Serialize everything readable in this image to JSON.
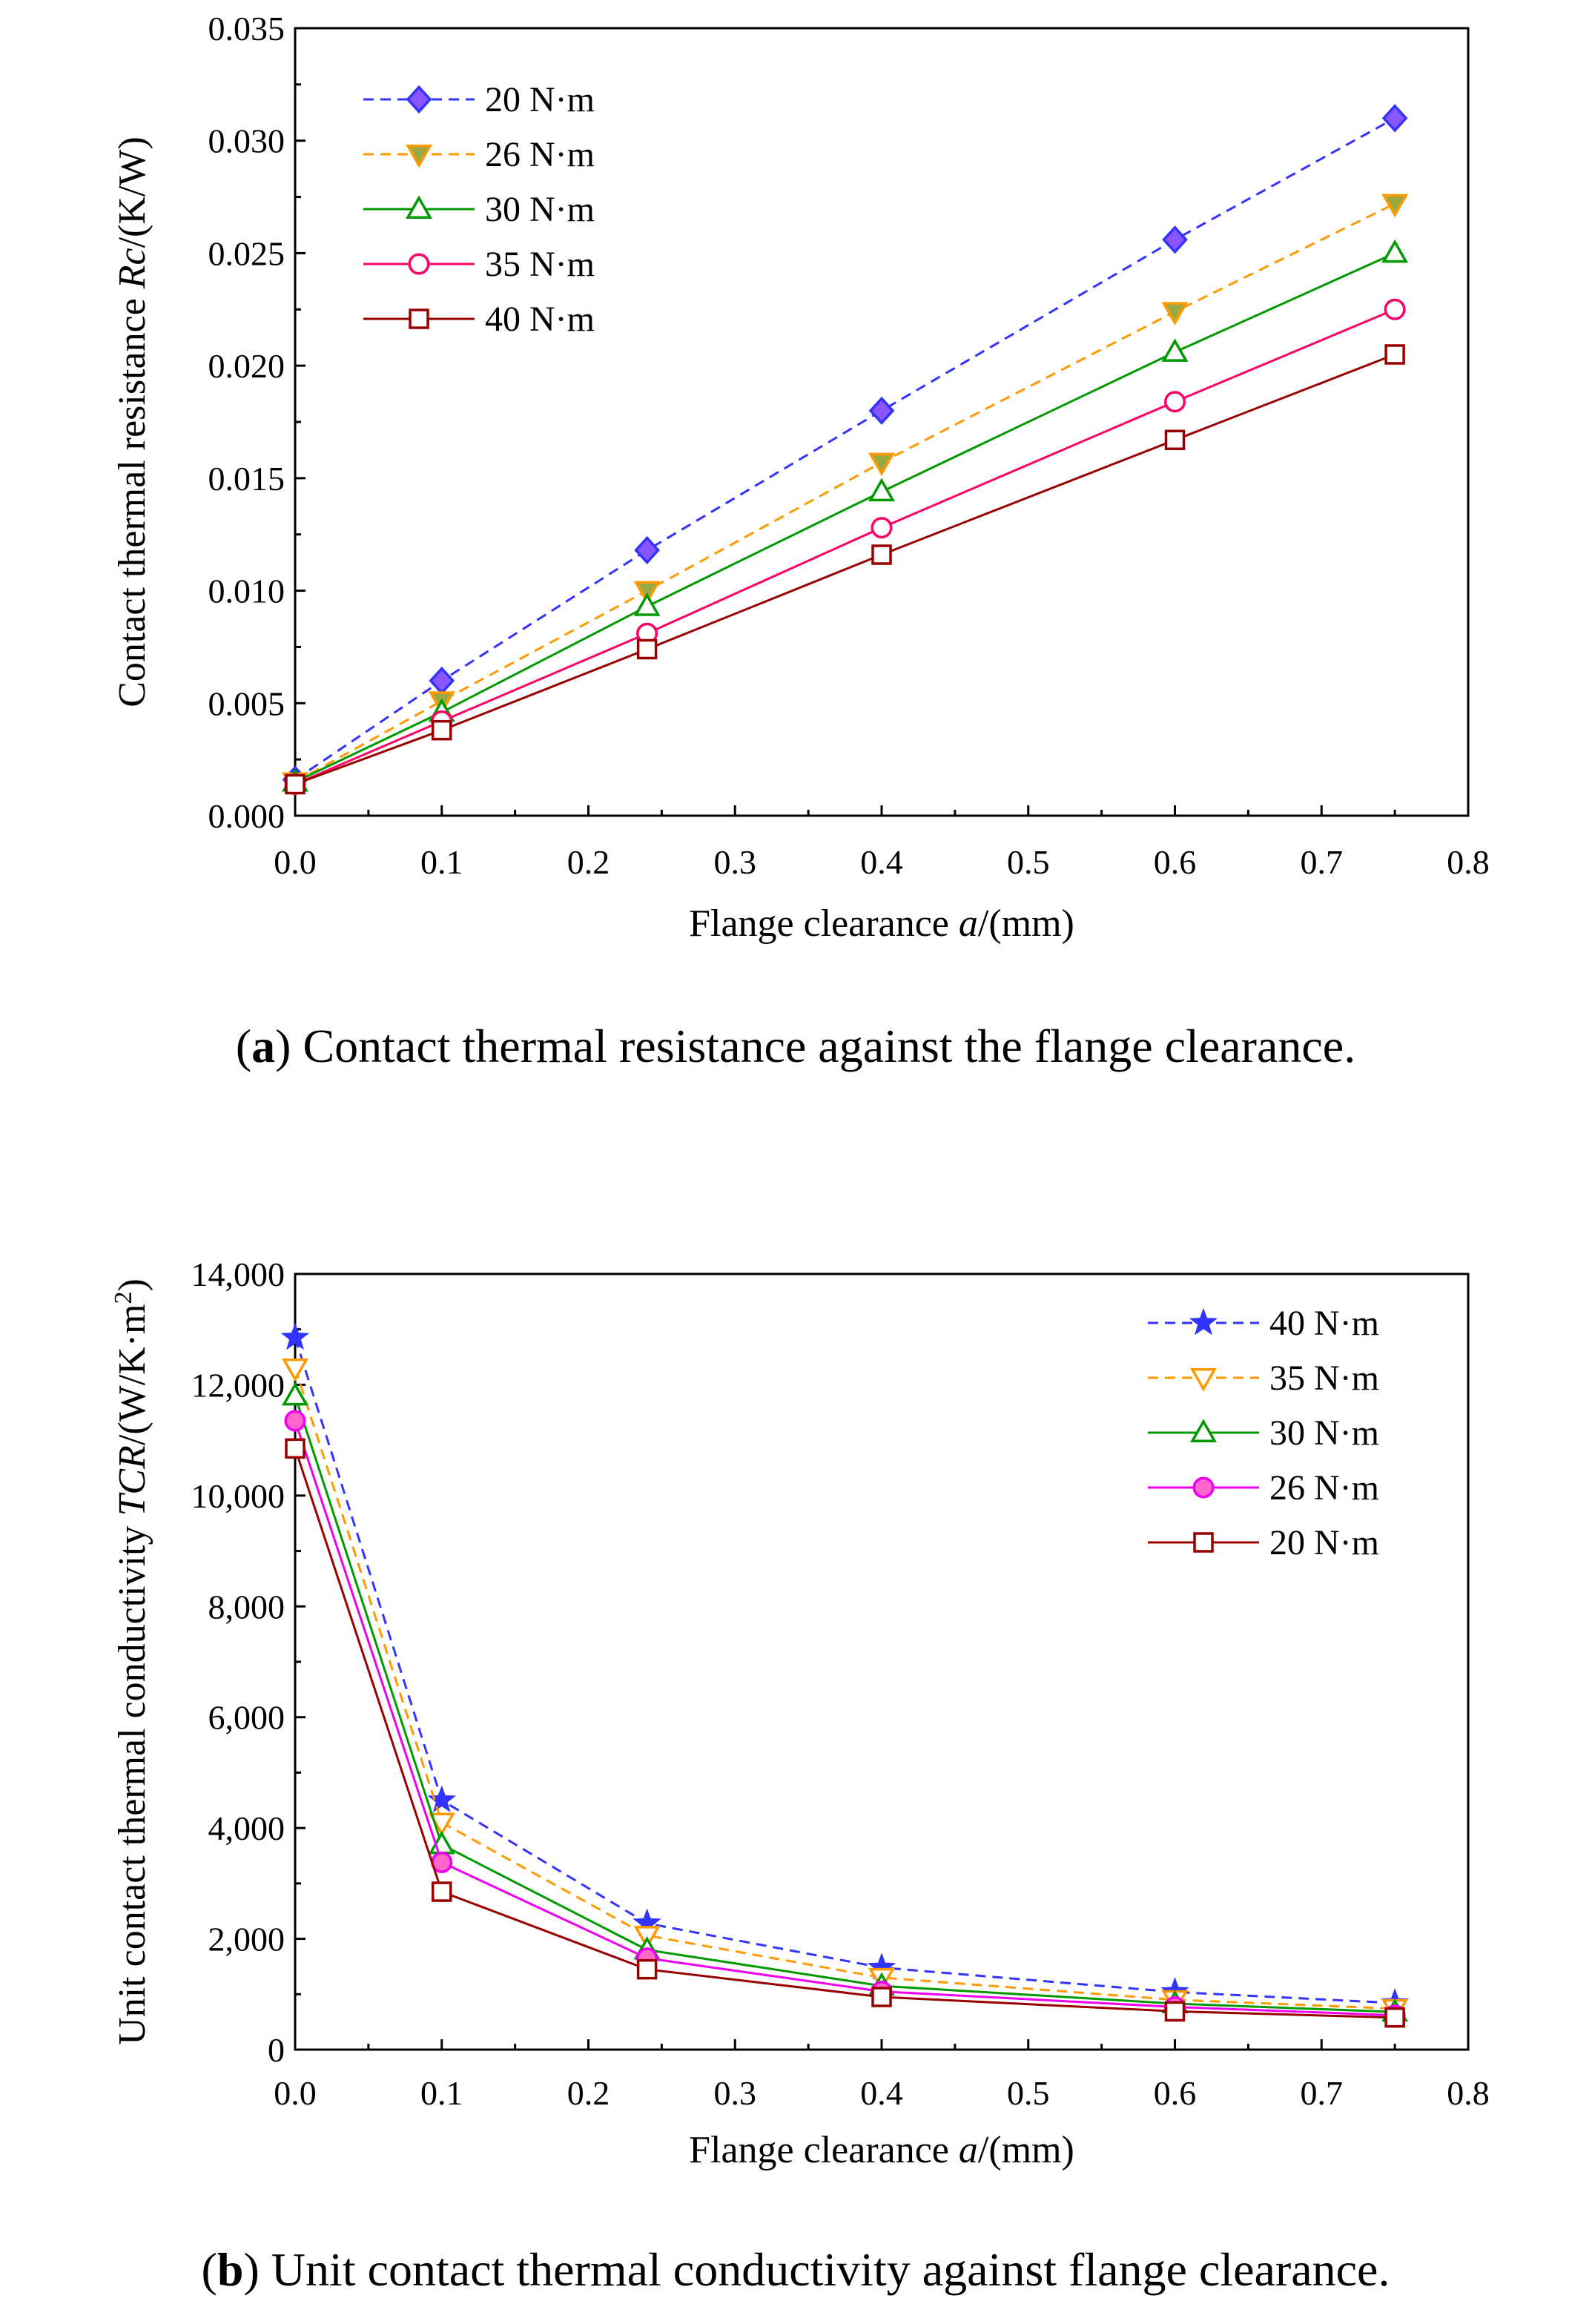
{
  "chart_data": [
    {
      "type": "line",
      "panel": "a",
      "caption_label": "a",
      "caption_text": "Contact thermal resistance against the flange clearance.",
      "xlabel": {
        "pre": "Flange clearance ",
        "var": "a",
        "post": "/(mm)"
      },
      "ylabel": {
        "pre": "Contact thermal resistance ",
        "var": "Rc",
        "post": "/(K/W)"
      },
      "xlim": [
        0,
        0.8
      ],
      "ylim": [
        0,
        0.035
      ],
      "x_ticks": [
        "0.0",
        "0.1",
        "0.2",
        "0.3",
        "0.4",
        "0.5",
        "0.6",
        "0.7",
        "0.8"
      ],
      "y_ticks": [
        "0.000",
        "0.005",
        "0.010",
        "0.015",
        "0.020",
        "0.025",
        "0.030",
        "0.035"
      ],
      "legend_position": "top-left",
      "x": [
        0,
        0.1,
        0.24,
        0.4,
        0.6,
        0.75
      ],
      "series": [
        {
          "name": "20 N·m",
          "color": "#3333ff",
          "marker_fill": "#8855ff",
          "dashed": true,
          "marker": "diamond",
          "filled": true,
          "values": [
            0.0016,
            0.006,
            0.0118,
            0.018,
            0.0256,
            0.031
          ]
        },
        {
          "name": "26 N·m",
          "color": "#ff9900",
          "marker_fill": "#99aa44",
          "dashed": true,
          "marker": "triangle-down",
          "filled": true,
          "values": [
            0.0015,
            0.0051,
            0.01,
            0.0157,
            0.0224,
            0.0272
          ]
        },
        {
          "name": "30 N·m",
          "color": "#009900",
          "dashed": false,
          "marker": "triangle-up",
          "filled": false,
          "values": [
            0.0015,
            0.0046,
            0.0093,
            0.0144,
            0.0206,
            0.025
          ]
        },
        {
          "name": "35 N·m",
          "color": "#ff0066",
          "dashed": false,
          "marker": "circle",
          "filled": false,
          "values": [
            0.0014,
            0.0042,
            0.0081,
            0.0128,
            0.0184,
            0.0225
          ]
        },
        {
          "name": "40 N·m",
          "color": "#990000",
          "dashed": false,
          "marker": "square",
          "filled": false,
          "values": [
            0.0014,
            0.0038,
            0.0074,
            0.0116,
            0.0167,
            0.0205
          ]
        }
      ]
    },
    {
      "type": "line",
      "panel": "b",
      "caption_label": "b",
      "caption_text": "Unit contact thermal conductivity against flange clearance.",
      "xlabel": {
        "pre": "Flange clearance ",
        "var": "a",
        "post": "/(mm)"
      },
      "ylabel": {
        "pre": "Unit contact thermal conductivity ",
        "var": "TCR",
        "post": "/(W/K·m",
        "sup": "2",
        "post2": ")"
      },
      "xlim": [
        0,
        0.8
      ],
      "ylim": [
        0,
        14000
      ],
      "x_ticks": [
        "0.0",
        "0.1",
        "0.2",
        "0.3",
        "0.4",
        "0.5",
        "0.6",
        "0.7",
        "0.8"
      ],
      "y_ticks": [
        "0",
        "2,000",
        "4,000",
        "6,000",
        "8,000",
        "10,000",
        "12,000",
        "14,000"
      ],
      "legend_position": "top-right",
      "x": [
        0,
        0.1,
        0.24,
        0.4,
        0.6,
        0.75
      ],
      "series": [
        {
          "name": "40 N·m",
          "color": "#3333ff",
          "marker_fill": "#3333ff",
          "dashed": true,
          "marker": "star",
          "filled": true,
          "values": [
            12850,
            4500,
            2280,
            1480,
            1040,
            840
          ]
        },
        {
          "name": "35 N·m",
          "color": "#ff9900",
          "dashed": true,
          "marker": "triangle-down",
          "filled": false,
          "values": [
            12300,
            4100,
            2060,
            1300,
            900,
            740
          ]
        },
        {
          "name": "30 N·m",
          "color": "#009900",
          "dashed": false,
          "marker": "triangle-up",
          "filled": false,
          "values": [
            11800,
            3700,
            1800,
            1150,
            830,
            680
          ]
        },
        {
          "name": "26 N·m",
          "color": "#ee00ee",
          "marker_fill": "#ff66cc",
          "dashed": false,
          "marker": "circle",
          "filled": true,
          "values": [
            11350,
            3380,
            1650,
            1050,
            770,
            620
          ]
        },
        {
          "name": "20 N·m",
          "color": "#990000",
          "dashed": false,
          "marker": "square",
          "filled": false,
          "values": [
            10850,
            2850,
            1450,
            950,
            690,
            580
          ]
        }
      ]
    }
  ]
}
